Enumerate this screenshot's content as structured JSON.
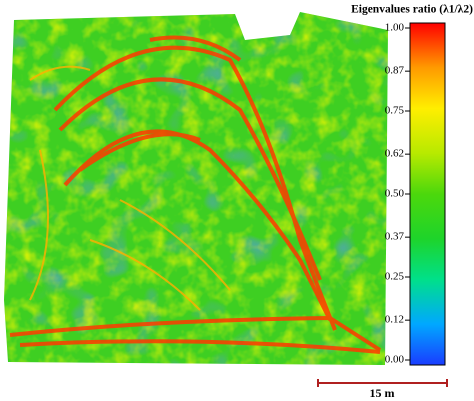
{
  "colorbar": {
    "title": "Eigenvalues ratio (λ1/λ2)",
    "lim": [
      0,
      1
    ],
    "ticks": [
      {
        "value": 1,
        "label": "1.00"
      },
      {
        "value": 0.87,
        "label": "0.87"
      },
      {
        "value": 0.75,
        "label": "0.75"
      },
      {
        "value": 0.62,
        "label": "0.62"
      },
      {
        "value": 0.5,
        "label": "0.50"
      },
      {
        "value": 0.37,
        "label": "0.37"
      },
      {
        "value": 0.25,
        "label": "0.25"
      },
      {
        "value": 0.12,
        "label": "0.12"
      },
      {
        "value": 0,
        "label": "0.00"
      }
    ]
  },
  "scale_bar": {
    "label": "15 m"
  }
}
